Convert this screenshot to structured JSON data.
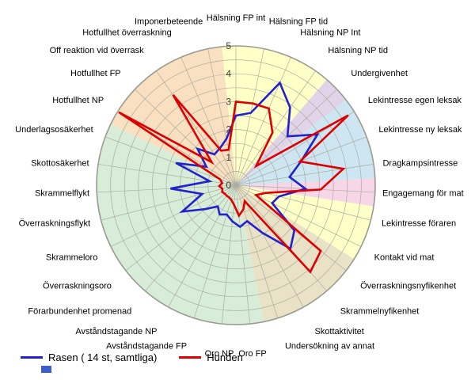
{
  "chart_data": {
    "type": "radar",
    "scale": {
      "min": 0,
      "max": 5,
      "ring_step": 0.5,
      "tick_values": [
        0,
        1,
        2,
        3,
        4,
        5
      ]
    },
    "grid": {
      "line_color": "#ACACA0",
      "rim_color": "#9A9A90",
      "tick_color": "#3E3E30",
      "label_color": "#000000"
    },
    "axes": [
      "Hälsning FP int",
      "Hälsning FP tid",
      "Hälsning NP Int",
      "Hälsning NP tid",
      "Undergivenhet",
      "Lekintresse egen leksak",
      "Lekintresse ny leksak",
      "Dragkampsintresse",
      "Engagemang för mat",
      "Lekintresse föraren",
      "Kontakt vid mat",
      "Överraskningsnyfikenhet",
      "Skrammelnyfikenhet",
      "Skottaktivitet",
      "Undersökning av annat",
      "Oro FP",
      "Oro NP",
      "Avståndstagande FP",
      "Avståndstagande NP",
      "Förarbundenhet promenad",
      "Överraskningsoro",
      "Skrammeloro",
      "Överraskningsflykt",
      "Skrammelflykt",
      "Skottosäkerhet",
      "Underlagsosäkerhet",
      "Hotfullhet NP",
      "Hotfullhet FP",
      "Off reaktion vid överrask",
      "Hotfullhet överraskning",
      "Imponerbeteende"
    ],
    "series": [
      {
        "name": "Rasen ( 14 st, samtliga)",
        "color": "#2222CC",
        "values": [
          2.5,
          2.65,
          4.0,
          3.4,
          2.55,
          3.45,
          2.5,
          1.95,
          2.5,
          1.6,
          1.45,
          2.65,
          3.0,
          1.95,
          1.35,
          1.5,
          1.3,
          1.1,
          1.2,
          1.0,
          1.4,
          2.15,
          1.25,
          2.35,
          0.95,
          2.3,
          1.25,
          1.9,
          1.35,
          1.45,
          1.7
        ]
      },
      {
        "name": "Hunden",
        "color": "#DC0000",
        "values": [
          3.0,
          3.0,
          3.0,
          2.3,
          1.0,
          4.75,
          2.45,
          3.9,
          3.05,
          1.1,
          0.8,
          3.85,
          4.1,
          0.65,
          0.9,
          1.1,
          0.7,
          0.55,
          0.5,
          0.5,
          0.5,
          0.55,
          0.5,
          0.6,
          0.5,
          0.6,
          4.95,
          1.2,
          3.95,
          1.35,
          1.3
        ]
      }
    ],
    "sectors": [
      {
        "from_axis": 0,
        "to_axis": 3,
        "color": "#FFFFC8"
      },
      {
        "from_axis": 4,
        "to_axis": 4,
        "color": "#E2D4E8"
      },
      {
        "from_axis": 5,
        "to_axis": 7,
        "color": "#CDE6F2"
      },
      {
        "from_axis": 8,
        "to_axis": 8,
        "color": "#F7D6E7"
      },
      {
        "from_axis": 9,
        "to_axis": 10,
        "color": "#FFFFC8"
      },
      {
        "from_axis": 11,
        "to_axis": 14,
        "color": "#E9E2C6"
      },
      {
        "from_axis": 15,
        "to_axis": 25,
        "color": "#D7EDD7"
      },
      {
        "from_axis": 26,
        "to_axis": 30,
        "color": "#F9E0C1"
      }
    ],
    "legend": [
      {
        "label": "Rasen ( 14 st, samtliga)",
        "color": "#2222CC"
      },
      {
        "label": "Hunden",
        "color": "#DC0000"
      }
    ]
  }
}
